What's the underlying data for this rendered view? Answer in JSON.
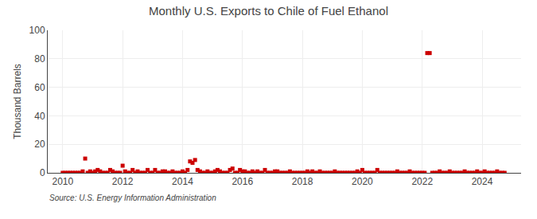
{
  "chart_data": {
    "type": "scatter",
    "title": "Monthly U.S. Exports to Chile of Fuel Ethanol",
    "ylabel": "Thousand Barrels",
    "annotations": [
      "Source: U.S. Energy Information Administration"
    ],
    "color": "#cc0000",
    "marker": "square",
    "grid": true,
    "xlim": [
      2009.5,
      2025.3
    ],
    "xticks": [
      2010,
      2012,
      2014,
      2016,
      2018,
      2020,
      2022,
      2024
    ],
    "ylim": [
      0,
      100
    ],
    "yticks": [
      0,
      20,
      40,
      60,
      80,
      100
    ],
    "x": [
      2010.0,
      2010.083,
      2010.167,
      2010.25,
      2010.333,
      2010.417,
      2010.5,
      2010.583,
      2010.667,
      2010.75,
      2010.833,
      2010.917,
      2011.0,
      2011.083,
      2011.167,
      2011.25,
      2011.333,
      2011.417,
      2011.5,
      2011.583,
      2011.667,
      2011.75,
      2011.833,
      2011.917,
      2012.0,
      2012.083,
      2012.167,
      2012.25,
      2012.333,
      2012.417,
      2012.5,
      2012.583,
      2012.667,
      2012.75,
      2012.833,
      2012.917,
      2013.0,
      2013.083,
      2013.167,
      2013.25,
      2013.333,
      2013.417,
      2013.5,
      2013.583,
      2013.667,
      2013.75,
      2013.833,
      2013.917,
      2014.0,
      2014.083,
      2014.167,
      2014.25,
      2014.333,
      2014.417,
      2014.5,
      2014.583,
      2014.667,
      2014.75,
      2014.833,
      2014.917,
      2015.0,
      2015.083,
      2015.167,
      2015.25,
      2015.333,
      2015.417,
      2015.5,
      2015.583,
      2015.667,
      2015.75,
      2015.833,
      2015.917,
      2016.0,
      2016.083,
      2016.167,
      2016.25,
      2016.333,
      2016.417,
      2016.5,
      2016.583,
      2016.667,
      2016.75,
      2016.833,
      2016.917,
      2017.0,
      2017.083,
      2017.167,
      2017.25,
      2017.333,
      2017.417,
      2017.5,
      2017.583,
      2017.667,
      2017.75,
      2017.833,
      2017.917,
      2018.0,
      2018.083,
      2018.167,
      2018.25,
      2018.333,
      2018.417,
      2018.5,
      2018.583,
      2018.667,
      2018.75,
      2018.833,
      2018.917,
      2019.0,
      2019.083,
      2019.167,
      2019.25,
      2019.333,
      2019.417,
      2019.5,
      2019.583,
      2019.667,
      2019.75,
      2019.833,
      2019.917,
      2020.0,
      2020.083,
      2020.167,
      2020.25,
      2020.333,
      2020.417,
      2020.5,
      2020.583,
      2020.667,
      2020.75,
      2020.833,
      2020.917,
      2021.0,
      2021.083,
      2021.167,
      2021.25,
      2021.333,
      2021.417,
      2021.5,
      2021.583,
      2021.667,
      2021.75,
      2021.833,
      2021.917,
      2022.0,
      2022.083,
      2022.167,
      2022.25,
      2022.333,
      2022.417,
      2022.5,
      2022.583,
      2022.667,
      2022.75,
      2022.833,
      2022.917,
      2023.0,
      2023.083,
      2023.167,
      2023.25,
      2023.333,
      2023.417,
      2023.5,
      2023.583,
      2023.667,
      2023.75,
      2023.833,
      2023.917,
      2024.0,
      2024.083,
      2024.167,
      2024.25,
      2024.333,
      2024.417,
      2024.5,
      2024.583,
      2024.667,
      2024.75
    ],
    "values": [
      0,
      0,
      0,
      0,
      0,
      0,
      0,
      0,
      1,
      10,
      0,
      1,
      0,
      1,
      2,
      1,
      0,
      0,
      0,
      2,
      1,
      0,
      0,
      0,
      5,
      1,
      0,
      0,
      2,
      0,
      1,
      0,
      0,
      0,
      2,
      0,
      0,
      2,
      0,
      0,
      1,
      1,
      0,
      0,
      1,
      0,
      0,
      0,
      1,
      0,
      2,
      8,
      7,
      9,
      2,
      1,
      0,
      0,
      1,
      0,
      0,
      1,
      2,
      1,
      0,
      0,
      0,
      2,
      3,
      0,
      0,
      2,
      1,
      1,
      0,
      0,
      1,
      0,
      1,
      0,
      0,
      2,
      0,
      0,
      0,
      1,
      1,
      0,
      0,
      0,
      0,
      1,
      0,
      0,
      0,
      0,
      0,
      0,
      1,
      0,
      1,
      0,
      0,
      1,
      0,
      0,
      0,
      0,
      0,
      1,
      0,
      0,
      0,
      0,
      0,
      0,
      0,
      0,
      1,
      0,
      2,
      0,
      0,
      0,
      0,
      0,
      2,
      0,
      0,
      0,
      0,
      0,
      0,
      0,
      1,
      0,
      0,
      0,
      0,
      1,
      0,
      0,
      0,
      0,
      0,
      0,
      84,
      84,
      0,
      0,
      0,
      1,
      0,
      0,
      0,
      1,
      0,
      0,
      0,
      0,
      0,
      1,
      0,
      0,
      0,
      0,
      1,
      0,
      0,
      1,
      0,
      0,
      0,
      0,
      1,
      0,
      0,
      0
    ]
  }
}
